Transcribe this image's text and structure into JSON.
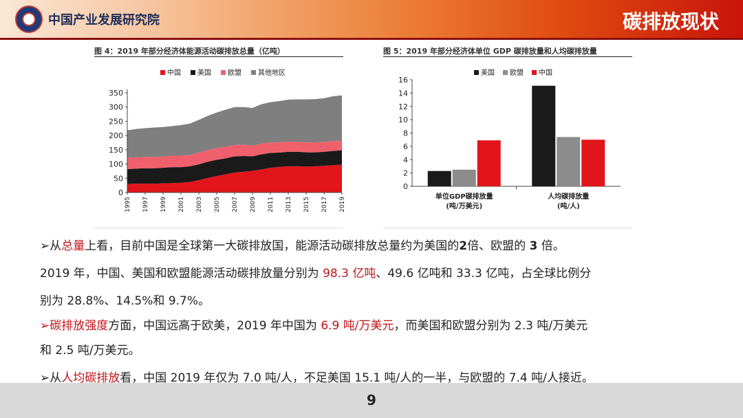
{
  "header": {
    "org_name": "中国产业发展研究院",
    "section_title": "碳排放现状",
    "colors": {
      "accent": "#e04d10",
      "brand": "#c8140b"
    }
  },
  "figure4": {
    "title": "图 4：2019 年部分经济体能源活动碳排放总量（亿吨）",
    "chart_data": {
      "type": "area",
      "stacked": true,
      "x": [
        1995,
        1996,
        1997,
        1998,
        1999,
        2000,
        2001,
        2002,
        2003,
        2004,
        2005,
        2006,
        2007,
        2008,
        2009,
        2010,
        2011,
        2012,
        2013,
        2014,
        2015,
        2016,
        2017,
        2018,
        2019
      ],
      "x_ticks": [
        "1995",
        "1997",
        "1999",
        "2001",
        "2003",
        "2005",
        "2007",
        "2009",
        "2011",
        "2013",
        "2015",
        "2017",
        "2019"
      ],
      "ylim": [
        0,
        350
      ],
      "y_ticks": [
        0,
        50,
        100,
        150,
        200,
        250,
        300,
        350
      ],
      "series": [
        {
          "name": "中国",
          "color": "#e2151c",
          "values": [
            30,
            31,
            31,
            31,
            32,
            33,
            34,
            37,
            43,
            51,
            58,
            64,
            70,
            73,
            76,
            81,
            87,
            90,
            92,
            92,
            91,
            92,
            94,
            96,
            98
          ]
        },
        {
          "name": "美国",
          "color": "#1a1a1a",
          "values": [
            52,
            53,
            54,
            54,
            55,
            56,
            55,
            55,
            56,
            57,
            57,
            56,
            57,
            55,
            51,
            53,
            52,
            50,
            51,
            51,
            50,
            49,
            49,
            50,
            50
          ]
        },
        {
          "name": "欧盟",
          "color": "#f0606c",
          "values": [
            40,
            40,
            40,
            40,
            39,
            40,
            40,
            40,
            41,
            41,
            41,
            41,
            40,
            40,
            37,
            38,
            37,
            36,
            36,
            34,
            35,
            35,
            35,
            34,
            33
          ]
        },
        {
          "name": "其他地区",
          "color": "#7f7f7f",
          "values": [
            96,
            99,
            101,
            103,
            104,
            104,
            108,
            110,
            115,
            120,
            125,
            130,
            133,
            132,
            133,
            138,
            141,
            145,
            147,
            150,
            151,
            152,
            153,
            158,
            160
          ]
        }
      ],
      "grid": false,
      "legend": "top"
    }
  },
  "figure5": {
    "title": "图 5：2019 年部分经济体单位 GDP 碳排放量和人均碳排放量",
    "chart_data": {
      "type": "bar",
      "categories": [
        "单位GDP碳排放量\n(吨/万美元)",
        "人均碳排放量\n(吨/人)"
      ],
      "category_labels": [
        [
          "单位GDP碳排放量",
          "(吨/万美元)"
        ],
        [
          "人均碳排放量",
          "(吨/人)"
        ]
      ],
      "series": [
        {
          "name": "美国",
          "color": "#1a1a1a",
          "values": [
            2.3,
            15.1
          ]
        },
        {
          "name": "欧盟",
          "color": "#8c8c8c",
          "values": [
            2.5,
            7.4
          ]
        },
        {
          "name": "中国",
          "color": "#e2151c",
          "values": [
            6.9,
            7.0
          ]
        }
      ],
      "ylim": [
        0,
        16
      ],
      "y_ticks": [
        0,
        2,
        4,
        6,
        8,
        10,
        12,
        14,
        16
      ],
      "grid": false,
      "legend": "top"
    }
  },
  "paragraphs": {
    "p1_arrow": "➢",
    "p1_a": "从",
    "p1_b": "总量",
    "p1_c": "上看，目前中国是全球第一大碳排放国，能源活动碳排放总量约为美国的",
    "p1_d": "2",
    "p1_e": "倍、欧盟的 ",
    "p1_f": "3",
    "p1_g": " 倍。",
    "p2_a": "2019 年，中国、美国和欧盟能源活动碳排放量分别为 ",
    "p2_b": "98.3 亿吨",
    "p2_c": "、49.6 亿吨和 33.3 亿吨，占全球比例分",
    "p3": "别为 28.8%、14.5%和 9.7%。",
    "p4_arrow": "➢",
    "p4_b": "碳排放强度",
    "p4_c": "方面，中国远高于欧美，2019 年中国为 ",
    "p4_d": "6.9 吨/万美元",
    "p4_e": "，而美国和欧盟分别为 2.3 吨/万美元",
    "p5": "和 2.5 吨/万美元。",
    "p6_arrow": "➢",
    "p6_a": "从",
    "p6_b": "人均碳排放",
    "p6_c": "看，中国 2019 年仅为 7.0 吨/人，不足美国 15.1 吨/人的一半，与欧盟的 7.4 吨/人接近。"
  },
  "footer": {
    "page_number": "9"
  }
}
